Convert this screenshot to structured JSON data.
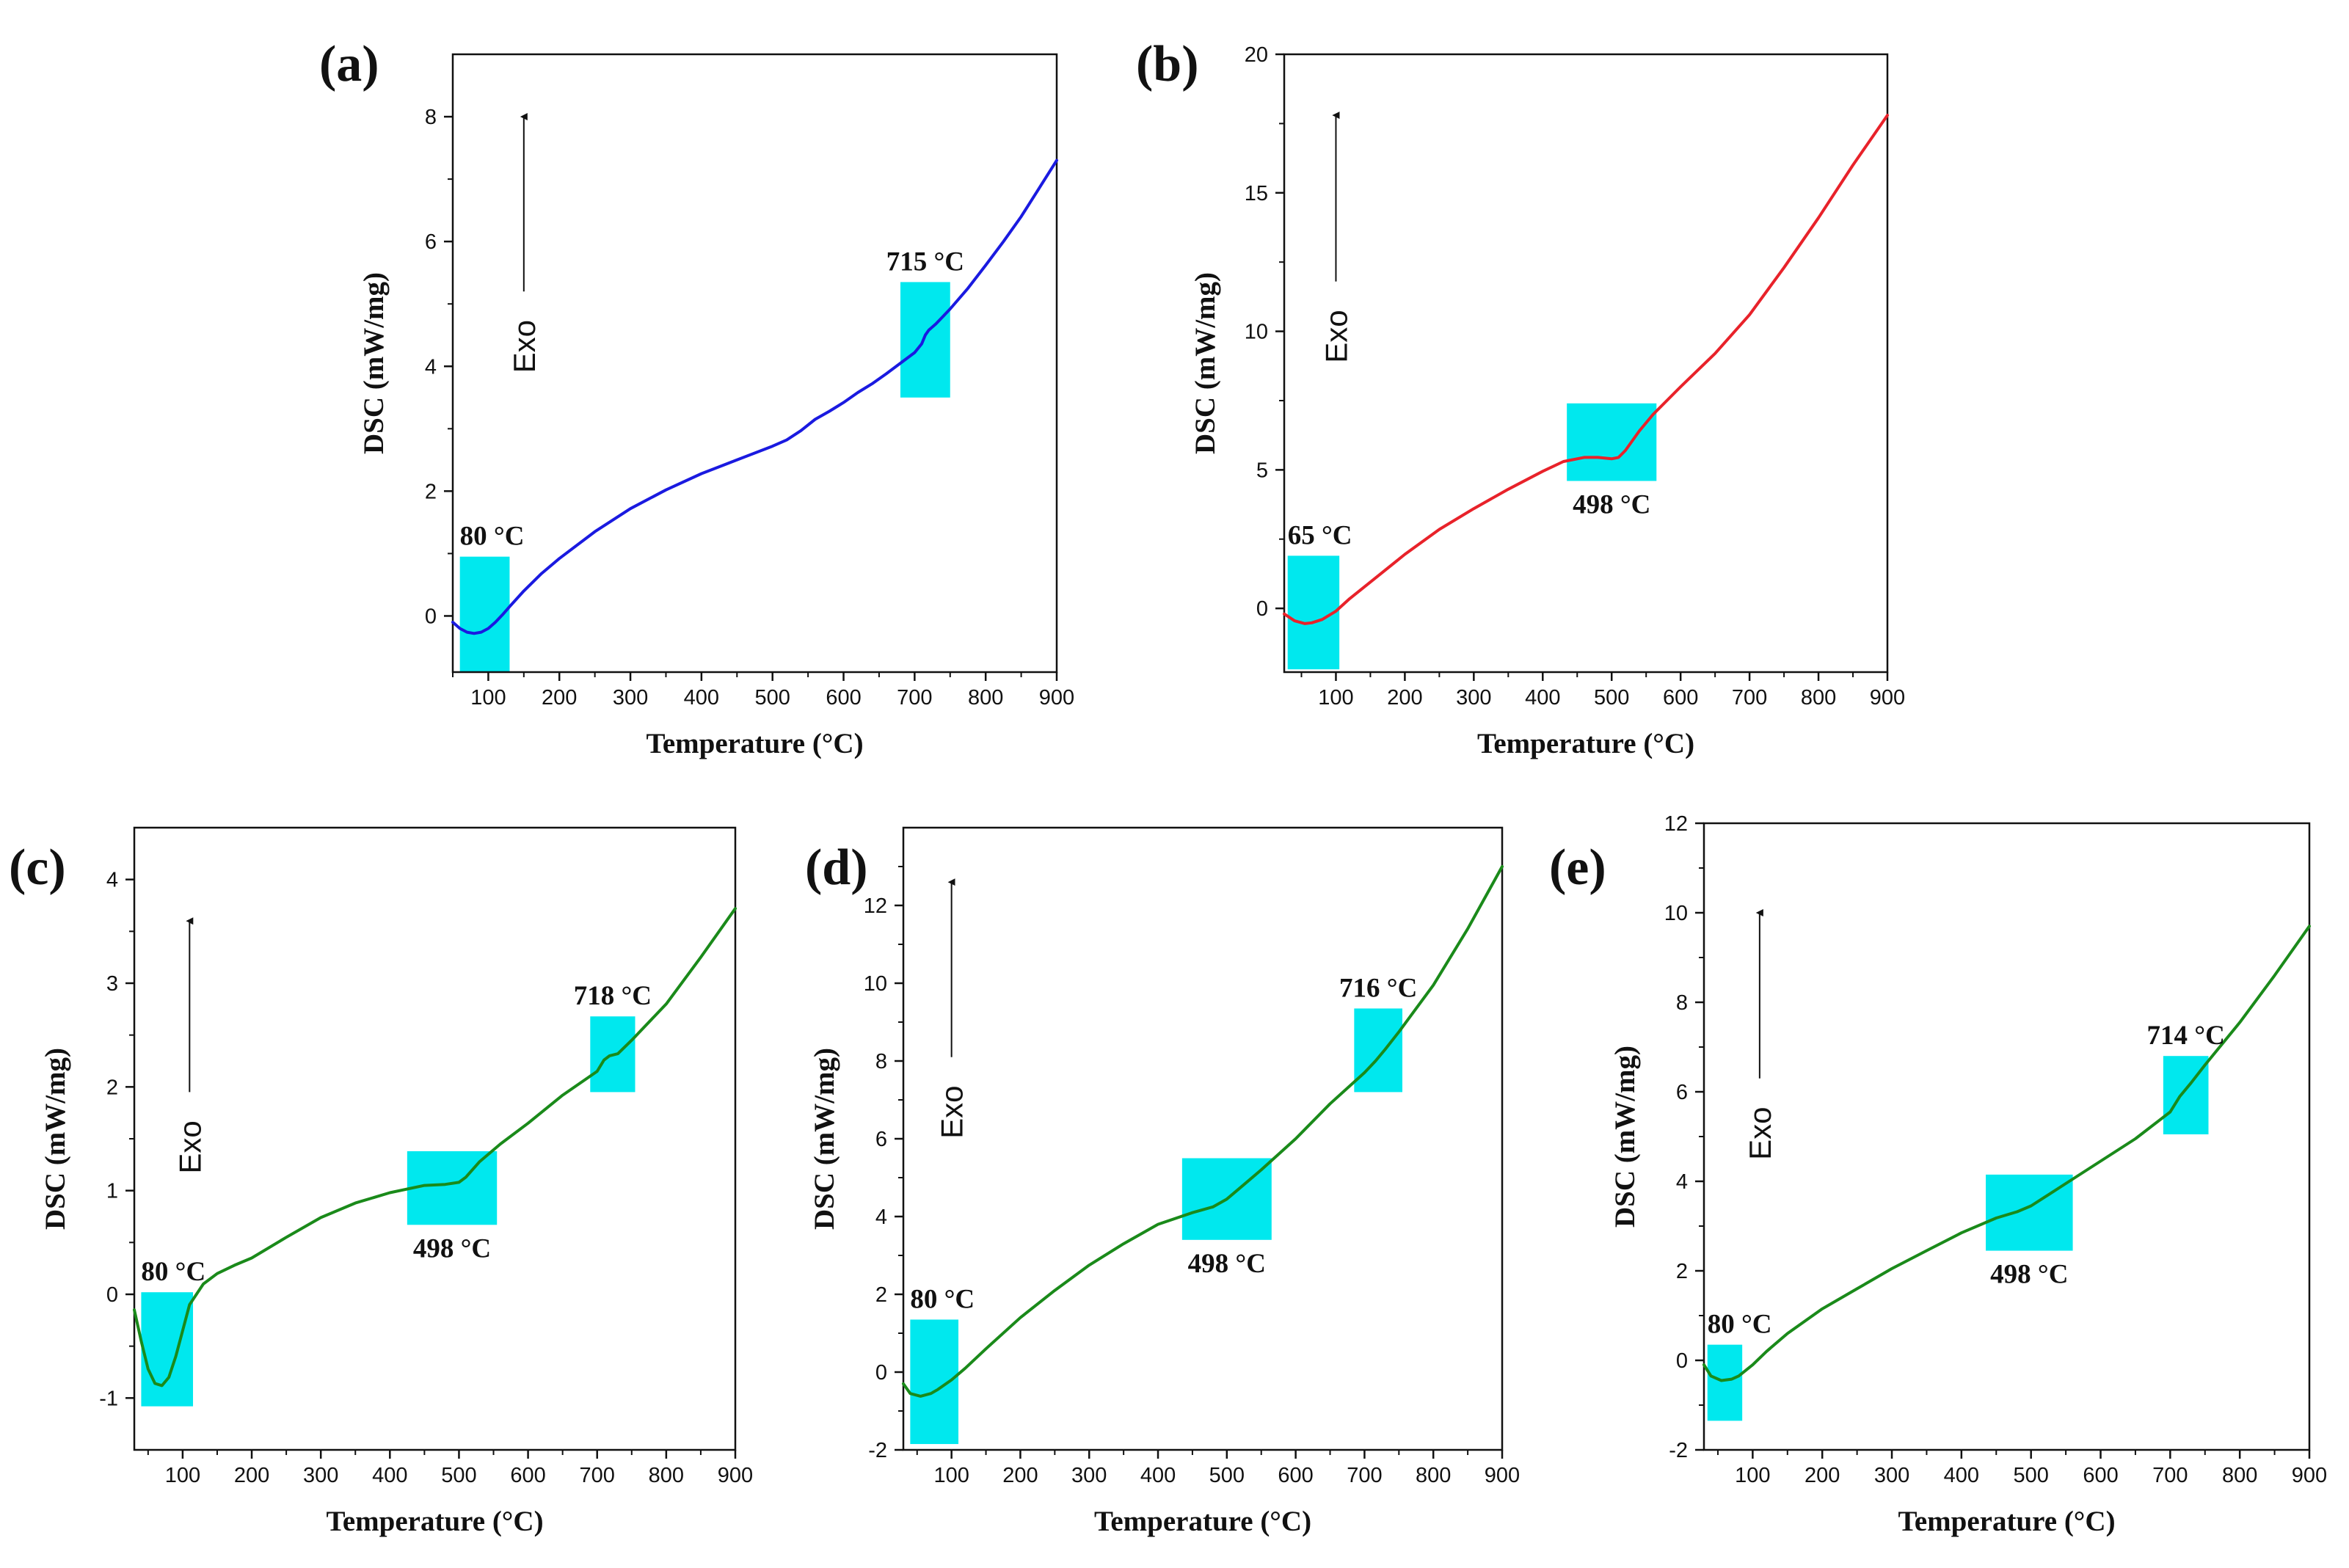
{
  "colors": {
    "blue": "#1a1ae0",
    "red": "#e8222a",
    "green": "#1a8a1a",
    "highlight": "#00e8ee"
  },
  "chart_data": [
    {
      "type": "line",
      "panel": "(a)",
      "xlabel": "Temperature (°C)",
      "ylabel": "DSC (mW/mg)",
      "exo_label": "Exo",
      "xlim": [
        50,
        900
      ],
      "ylim": [
        -0.9,
        9
      ],
      "xticks": [
        100,
        200,
        300,
        400,
        500,
        600,
        700,
        800,
        900
      ],
      "yticks": [
        0,
        2,
        4,
        6,
        8
      ],
      "color": "blue",
      "x": [
        50,
        60,
        70,
        80,
        90,
        100,
        110,
        120,
        130,
        150,
        175,
        200,
        250,
        300,
        350,
        400,
        450,
        500,
        520,
        540,
        560,
        580,
        600,
        620,
        640,
        660,
        680,
        700,
        710,
        715,
        720,
        730,
        740,
        750,
        775,
        800,
        825,
        850,
        875,
        900
      ],
      "y": [
        -0.1,
        -0.2,
        -0.26,
        -0.28,
        -0.26,
        -0.2,
        -0.1,
        0.02,
        0.15,
        0.4,
        0.68,
        0.92,
        1.35,
        1.72,
        2.02,
        2.28,
        2.5,
        2.72,
        2.82,
        2.97,
        3.15,
        3.28,
        3.42,
        3.58,
        3.72,
        3.88,
        4.05,
        4.22,
        4.36,
        4.5,
        4.58,
        4.68,
        4.8,
        4.92,
        5.25,
        5.62,
        6.0,
        6.4,
        6.85,
        7.3
      ],
      "annotations": [
        {
          "label": "80 °C",
          "x1": 60,
          "x2": 130,
          "y1": -0.9,
          "y2": 0.95
        },
        {
          "label": "715 °C",
          "x1": 680,
          "x2": 750,
          "y1": 3.5,
          "y2": 5.35
        }
      ],
      "arrow": {
        "x": 150,
        "y1": 5.2,
        "y2": 8.0
      }
    },
    {
      "type": "line",
      "panel": "(b)",
      "xlabel": "Temperature (°C)",
      "ylabel": "DSC (mW/mg)",
      "exo_label": "Exo",
      "xlim": [
        25,
        900
      ],
      "ylim": [
        -2.3,
        20
      ],
      "xticks": [
        100,
        200,
        300,
        400,
        500,
        600,
        700,
        800,
        900
      ],
      "yticks": [
        0,
        5,
        10,
        15,
        20
      ],
      "color": "red",
      "x": [
        25,
        40,
        55,
        65,
        80,
        100,
        120,
        150,
        200,
        250,
        300,
        350,
        400,
        430,
        460,
        480,
        500,
        510,
        520,
        540,
        560,
        600,
        650,
        700,
        750,
        800,
        850,
        900
      ],
      "y": [
        -0.2,
        -0.45,
        -0.55,
        -0.52,
        -0.4,
        -0.1,
        0.35,
        0.95,
        1.95,
        2.85,
        3.6,
        4.3,
        4.95,
        5.3,
        5.45,
        5.45,
        5.4,
        5.45,
        5.7,
        6.4,
        7.0,
        8.0,
        9.2,
        10.6,
        12.3,
        14.1,
        16.0,
        17.8
      ],
      "annotations": [
        {
          "label": "65 °C",
          "x1": 30,
          "x2": 105,
          "y1": -2.2,
          "y2": 1.9
        },
        {
          "label": "498 °C",
          "x1": 435,
          "x2": 565,
          "y1": 4.6,
          "y2": 7.4
        }
      ],
      "arrow": {
        "x": 100,
        "y1": 11.8,
        "y2": 17.8
      }
    },
    {
      "type": "line",
      "panel": "(c)",
      "xlabel": "Temperature (°C)",
      "ylabel": "DSC (mW/mg)",
      "exo_label": "Exo",
      "xlim": [
        30,
        900
      ],
      "ylim": [
        -1.5,
        4.5
      ],
      "xticks": [
        100,
        200,
        300,
        400,
        500,
        600,
        700,
        800,
        900
      ],
      "yticks": [
        -1,
        0,
        1,
        2,
        3,
        4
      ],
      "color": "green",
      "x": [
        30,
        40,
        50,
        60,
        70,
        80,
        90,
        100,
        110,
        130,
        150,
        175,
        200,
        250,
        300,
        350,
        400,
        450,
        480,
        500,
        510,
        530,
        560,
        600,
        650,
        700,
        710,
        718,
        730,
        750,
        800,
        850,
        900
      ],
      "y": [
        -0.15,
        -0.45,
        -0.72,
        -0.86,
        -0.88,
        -0.8,
        -0.6,
        -0.35,
        -0.1,
        0.1,
        0.2,
        0.28,
        0.35,
        0.55,
        0.74,
        0.88,
        0.98,
        1.05,
        1.06,
        1.08,
        1.13,
        1.28,
        1.45,
        1.65,
        1.92,
        2.15,
        2.26,
        2.3,
        2.32,
        2.45,
        2.8,
        3.25,
        3.72
      ],
      "annotations": [
        {
          "label": "80 °C",
          "x1": 40,
          "x2": 115,
          "y1": -1.08,
          "y2": 0.02
        },
        {
          "label": "498 °C",
          "x1": 425,
          "x2": 555,
          "y1": 0.67,
          "y2": 1.38
        },
        {
          "label": "718 °C",
          "x1": 690,
          "x2": 755,
          "y1": 1.95,
          "y2": 2.68
        }
      ],
      "arrow": {
        "x": 110,
        "y1": 1.95,
        "y2": 3.6
      }
    },
    {
      "type": "line",
      "panel": "(d)",
      "xlabel": "Temperature (°C)",
      "ylabel": "DSC (mW/mg)",
      "exo_label": "Exo",
      "xlim": [
        30,
        900
      ],
      "ylim": [
        -2,
        14
      ],
      "xticks": [
        100,
        200,
        300,
        400,
        500,
        600,
        700,
        800,
        900
      ],
      "yticks": [
        -2,
        0,
        2,
        4,
        6,
        8,
        10,
        12
      ],
      "color": "green",
      "x": [
        30,
        40,
        55,
        70,
        80,
        100,
        120,
        150,
        200,
        250,
        300,
        350,
        400,
        450,
        480,
        500,
        520,
        550,
        600,
        650,
        700,
        716,
        730,
        750,
        800,
        850,
        900
      ],
      "y": [
        -0.3,
        -0.55,
        -0.62,
        -0.55,
        -0.45,
        -0.2,
        0.1,
        0.6,
        1.4,
        2.1,
        2.75,
        3.3,
        3.8,
        4.1,
        4.25,
        4.45,
        4.75,
        5.2,
        6.0,
        6.9,
        7.7,
        8.0,
        8.3,
        8.75,
        9.95,
        11.4,
        13.0
      ],
      "annotations": [
        {
          "label": "80 °C",
          "x1": 40,
          "x2": 110,
          "y1": -1.85,
          "y2": 1.35
        },
        {
          "label": "498 °C",
          "x1": 435,
          "x2": 565,
          "y1": 3.4,
          "y2": 5.5
        },
        {
          "label": "716 °C",
          "x1": 685,
          "x2": 755,
          "y1": 7.2,
          "y2": 9.35
        }
      ],
      "arrow": {
        "x": 100,
        "y1": 8.1,
        "y2": 12.6
      }
    },
    {
      "type": "line",
      "panel": "(e)",
      "xlabel": "Temperature (°C)",
      "ylabel": "DSC (mW/mg)",
      "exo_label": "Exo",
      "xlim": [
        30,
        900
      ],
      "ylim": [
        -2,
        12
      ],
      "xticks": [
        100,
        200,
        300,
        400,
        500,
        600,
        700,
        800,
        900
      ],
      "yticks": [
        -2,
        0,
        2,
        4,
        6,
        8,
        10,
        12
      ],
      "color": "green",
      "x": [
        30,
        40,
        55,
        70,
        80,
        100,
        120,
        150,
        200,
        250,
        300,
        350,
        400,
        450,
        480,
        500,
        520,
        550,
        600,
        650,
        700,
        714,
        730,
        750,
        800,
        850,
        900
      ],
      "y": [
        -0.1,
        -0.35,
        -0.45,
        -0.42,
        -0.35,
        -0.1,
        0.2,
        0.6,
        1.15,
        1.6,
        2.05,
        2.45,
        2.85,
        3.18,
        3.32,
        3.45,
        3.65,
        3.95,
        4.45,
        4.95,
        5.55,
        5.9,
        6.2,
        6.6,
        7.55,
        8.6,
        9.7
      ],
      "annotations": [
        {
          "label": "80 °C",
          "x1": 35,
          "x2": 85,
          "y1": -1.35,
          "y2": 0.35
        },
        {
          "label": "498 °C",
          "x1": 435,
          "x2": 560,
          "y1": 2.45,
          "y2": 4.15
        },
        {
          "label": "714 °C",
          "x1": 690,
          "x2": 755,
          "y1": 5.05,
          "y2": 6.8
        }
      ],
      "arrow": {
        "x": 110,
        "y1": 6.3,
        "y2": 10.0
      }
    }
  ]
}
